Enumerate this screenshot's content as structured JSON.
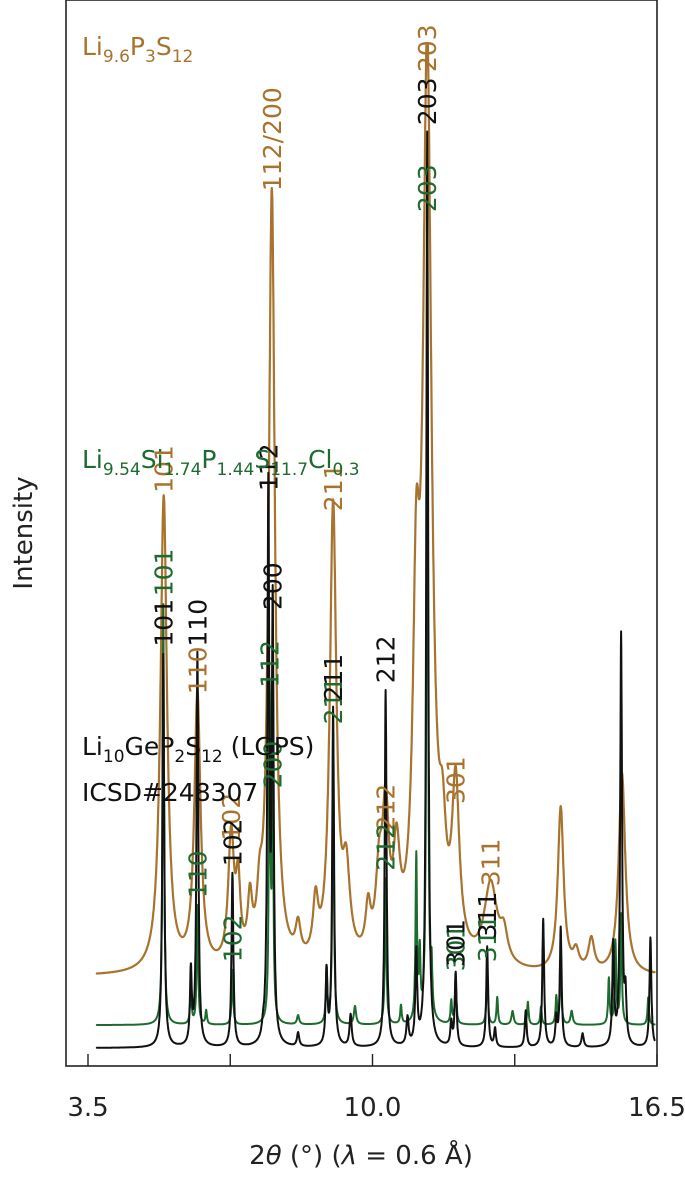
{
  "chart_data": {
    "type": "line",
    "xlabel_parts": [
      "2",
      "θ",
      " (°) (",
      "λ",
      " = 0.6 Å)"
    ],
    "ylabel": "Intensity",
    "xlim": [
      3.5,
      16.5
    ],
    "xticks": [
      {
        "value": 3.5,
        "label": "3.5"
      },
      {
        "value": 6.75,
        "label": ""
      },
      {
        "value": 10.0,
        "label": "10.0"
      },
      {
        "value": 13.25,
        "label": ""
      },
      {
        "value": 16.5,
        "label": "16.5"
      }
    ],
    "grid": false,
    "legend": "none",
    "series": [
      {
        "name_parts": [
          [
            "Li",
            ""
          ],
          [
            "9.6",
            "sub"
          ],
          [
            "P",
            ""
          ],
          [
            "3",
            "sub"
          ],
          [
            "S",
            ""
          ],
          [
            "12",
            "sub"
          ]
        ],
        "color": "#a8732e",
        "stroke_width": 2.2,
        "baseline": 0.78,
        "scale": 10.0,
        "peaks": [
          [
            5.23,
            5.2,
            0.09
          ],
          [
            6.0,
            3.0,
            0.085
          ],
          [
            6.77,
            1.4,
            0.08
          ],
          [
            6.93,
            0.8,
            0.06
          ],
          [
            7.2,
            0.6,
            0.06
          ],
          [
            7.42,
            0.5,
            0.07
          ],
          [
            7.7,
            8.5,
            0.085
          ],
          [
            8.3,
            0.35,
            0.07
          ],
          [
            8.7,
            0.6,
            0.07
          ],
          [
            9.1,
            5.0,
            0.09
          ],
          [
            9.4,
            0.9,
            0.1
          ],
          [
            9.9,
            0.5,
            0.07
          ],
          [
            10.15,
            0.8,
            0.09
          ],
          [
            10.3,
            1.5,
            0.09
          ],
          [
            10.55,
            1.0,
            0.09
          ],
          [
            11.0,
            3.3,
            0.09
          ],
          [
            11.25,
            9.8,
            0.12
          ],
          [
            11.6,
            0.9,
            0.09
          ],
          [
            11.9,
            1.8,
            0.1
          ],
          [
            12.7,
            0.9,
            0.18
          ],
          [
            13.0,
            0.3,
            0.1
          ],
          [
            14.3,
            1.8,
            0.08
          ],
          [
            14.65,
            0.2,
            0.08
          ],
          [
            15.0,
            0.35,
            0.08
          ],
          [
            15.7,
            2.2,
            0.09
          ]
        ],
        "labels": [
          {
            "x": 5.23,
            "text": "101"
          },
          {
            "x": 6.0,
            "text": "110"
          },
          {
            "x": 6.77,
            "text": "102"
          },
          {
            "x": 7.7,
            "text": "112/200"
          },
          {
            "x": 9.1,
            "text": "211"
          },
          {
            "x": 10.3,
            "text": "212"
          },
          {
            "x": 11.25,
            "text": "203"
          },
          {
            "x": 11.9,
            "text": "301"
          },
          {
            "x": 12.7,
            "text": "311"
          }
        ]
      },
      {
        "name_parts": [
          [
            "Li",
            ""
          ],
          [
            "9.54",
            "sub"
          ],
          [
            "Si",
            ""
          ],
          [
            "1.74",
            "sub"
          ],
          [
            "P",
            ""
          ],
          [
            "1.44",
            "sub"
          ],
          [
            "S",
            ""
          ],
          [
            "11.7",
            "sub"
          ],
          [
            "Cl",
            ""
          ],
          [
            "0.3",
            "sub"
          ]
        ],
        "color": "#1e6b30",
        "stroke_width": 2.0,
        "baseline": 0.25,
        "scale": 10.0,
        "peaks": [
          [
            5.22,
            4.6,
            0.02
          ],
          [
            5.85,
            0.4,
            0.02
          ],
          [
            6.0,
            1.3,
            0.02
          ],
          [
            6.2,
            0.15,
            0.02
          ],
          [
            6.8,
            0.6,
            0.02
          ],
          [
            7.65,
            3.6,
            0.02
          ],
          [
            7.72,
            2.5,
            0.02
          ],
          [
            8.3,
            0.1,
            0.03
          ],
          [
            8.95,
            0.6,
            0.02
          ],
          [
            9.1,
            3.2,
            0.02
          ],
          [
            9.6,
            0.2,
            0.03
          ],
          [
            10.3,
            1.6,
            0.02
          ],
          [
            10.65,
            0.2,
            0.02
          ],
          [
            11.0,
            1.8,
            0.02
          ],
          [
            11.08,
            0.7,
            0.02
          ],
          [
            11.25,
            8.8,
            0.02
          ],
          [
            11.35,
            0.5,
            0.02
          ],
          [
            11.8,
            0.25,
            0.02
          ],
          [
            11.9,
            0.5,
            0.02
          ],
          [
            12.62,
            0.6,
            0.02
          ],
          [
            12.85,
            0.3,
            0.02
          ],
          [
            13.2,
            0.15,
            0.03
          ],
          [
            13.55,
            0.25,
            0.02
          ],
          [
            13.85,
            0.2,
            0.02
          ],
          [
            14.2,
            0.3,
            0.02
          ],
          [
            14.3,
            0.7,
            0.02
          ],
          [
            14.55,
            0.15,
            0.03
          ],
          [
            15.4,
            0.5,
            0.02
          ],
          [
            15.55,
            0.9,
            0.02
          ],
          [
            15.68,
            1.2,
            0.02
          ],
          [
            16.3,
            0.3,
            0.02
          ]
        ],
        "labels": [
          {
            "x": 5.22,
            "text": "101"
          },
          {
            "x": 6.0,
            "text": "110"
          },
          {
            "x": 6.8,
            "text": "102"
          },
          {
            "x": 7.65,
            "text": "112"
          },
          {
            "x": 7.72,
            "text": "200"
          },
          {
            "x": 9.1,
            "text": "211"
          },
          {
            "x": 10.3,
            "text": "212"
          },
          {
            "x": 11.25,
            "text": "203"
          },
          {
            "x": 11.9,
            "text": "301"
          },
          {
            "x": 12.62,
            "text": "311"
          }
        ]
      },
      {
        "name_parts": [
          [
            "Li",
            ""
          ],
          [
            "10",
            "sub"
          ],
          [
            "GeP",
            ""
          ],
          [
            "2",
            "sub"
          ],
          [
            "S",
            ""
          ],
          [
            "12",
            "sub"
          ],
          [
            " (LGPS)",
            ""
          ]
        ],
        "name_line2": "ICSD#248307",
        "color": "#111111",
        "stroke_width": 2.0,
        "baseline": 0.0,
        "scale": 10.0,
        "peaks": [
          [
            5.22,
            4.3,
            0.025
          ],
          [
            5.85,
            0.8,
            0.025
          ],
          [
            6.0,
            4.3,
            0.025
          ],
          [
            6.8,
            1.9,
            0.025
          ],
          [
            7.5,
            0.1,
            0.03
          ],
          [
            7.62,
            6.0,
            0.025
          ],
          [
            7.72,
            4.7,
            0.025
          ],
          [
            8.3,
            0.15,
            0.03
          ],
          [
            8.95,
            0.8,
            0.025
          ],
          [
            9.1,
            3.7,
            0.025
          ],
          [
            9.5,
            0.35,
            0.03
          ],
          [
            10.3,
            3.9,
            0.025
          ],
          [
            10.8,
            0.3,
            0.03
          ],
          [
            11.0,
            1.0,
            0.025
          ],
          [
            11.25,
            10.0,
            0.025
          ],
          [
            11.8,
            0.25,
            0.025
          ],
          [
            11.9,
            0.8,
            0.025
          ],
          [
            12.62,
            1.1,
            0.025
          ],
          [
            12.8,
            0.2,
            0.025
          ],
          [
            13.5,
            0.4,
            0.025
          ],
          [
            13.9,
            1.4,
            0.025
          ],
          [
            14.2,
            0.3,
            0.025
          ],
          [
            14.3,
            1.3,
            0.025
          ],
          [
            14.8,
            0.15,
            0.03
          ],
          [
            15.5,
            1.1,
            0.025
          ],
          [
            15.68,
            4.5,
            0.025
          ],
          [
            15.78,
            0.5,
            0.025
          ],
          [
            16.35,
            1.2,
            0.025
          ]
        ],
        "labels": [
          {
            "x": 5.22,
            "text": "101"
          },
          {
            "x": 6.0,
            "text": "110"
          },
          {
            "x": 6.8,
            "text": "102"
          },
          {
            "x": 7.62,
            "text": "112"
          },
          {
            "x": 7.72,
            "text": "200"
          },
          {
            "x": 9.1,
            "text": "211"
          },
          {
            "x": 10.3,
            "text": "212"
          },
          {
            "x": 11.25,
            "text": "203"
          },
          {
            "x": 11.9,
            "text": "301"
          },
          {
            "x": 12.62,
            "text": "311"
          }
        ]
      }
    ]
  }
}
